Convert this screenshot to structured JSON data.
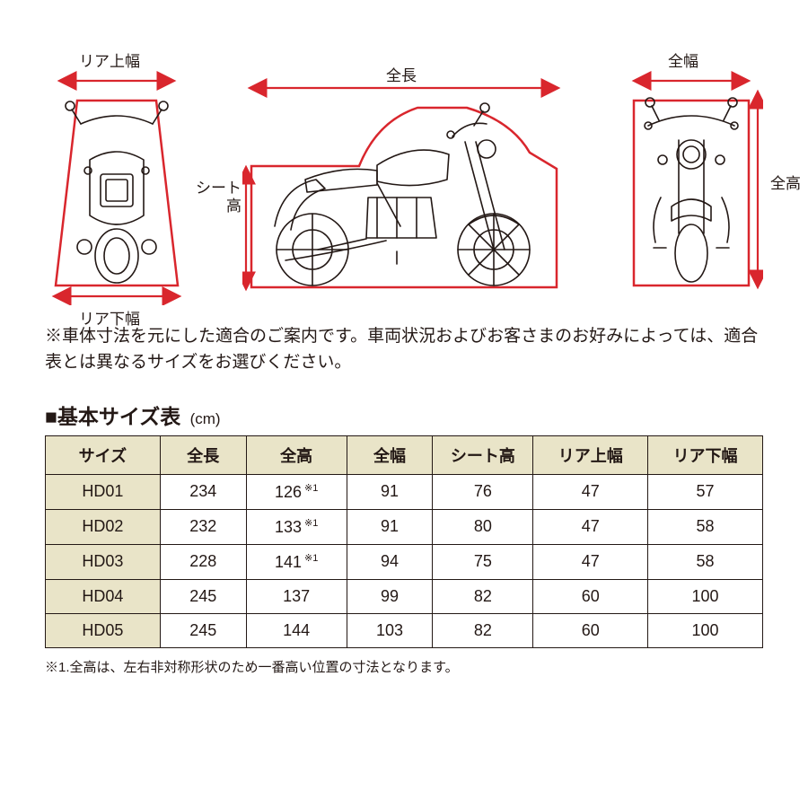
{
  "colors": {
    "accent": "#d9262d",
    "line": "#231815",
    "table_header_bg": "#e9e4c8",
    "background": "#ffffff"
  },
  "diagram_labels": {
    "rear_top": "リア上幅",
    "rear_bottom": "リア下幅",
    "side_top": "全長",
    "side_left": "シート\n高",
    "front_top": "全幅",
    "front_right": "全高"
  },
  "disclaimer": "※車体寸法を元にした適合のご案内です。車両状況およびお客さまのお好みによっては、適合表とは異なるサイズをお選びください。",
  "table": {
    "heading_prefix": "■",
    "heading": "基本サイズ表",
    "unit": "(cm)",
    "columns": [
      "サイズ",
      "全長",
      "全高",
      "全幅",
      "シート高",
      "リア上幅",
      "リア下幅"
    ],
    "col_widths_pct": [
      16,
      12,
      14,
      12,
      14,
      16,
      16
    ],
    "rows": [
      {
        "size": "HD01",
        "length": "234",
        "height": "126",
        "height_note": "※1",
        "width": "91",
        "seat": "76",
        "rear_top": "47",
        "rear_bottom": "57"
      },
      {
        "size": "HD02",
        "length": "232",
        "height": "133",
        "height_note": "※1",
        "width": "91",
        "seat": "80",
        "rear_top": "47",
        "rear_bottom": "58"
      },
      {
        "size": "HD03",
        "length": "228",
        "height": "141",
        "height_note": "※1",
        "width": "94",
        "seat": "75",
        "rear_top": "47",
        "rear_bottom": "58"
      },
      {
        "size": "HD04",
        "length": "245",
        "height": "137",
        "height_note": "",
        "width": "99",
        "seat": "82",
        "rear_top": "60",
        "rear_bottom": "100"
      },
      {
        "size": "HD05",
        "length": "245",
        "height": "144",
        "height_note": "",
        "width": "103",
        "seat": "82",
        "rear_top": "60",
        "rear_bottom": "100"
      }
    ]
  },
  "footnote": "※1.全高は、左右非対称形状のため一番高い位置の寸法となります。"
}
